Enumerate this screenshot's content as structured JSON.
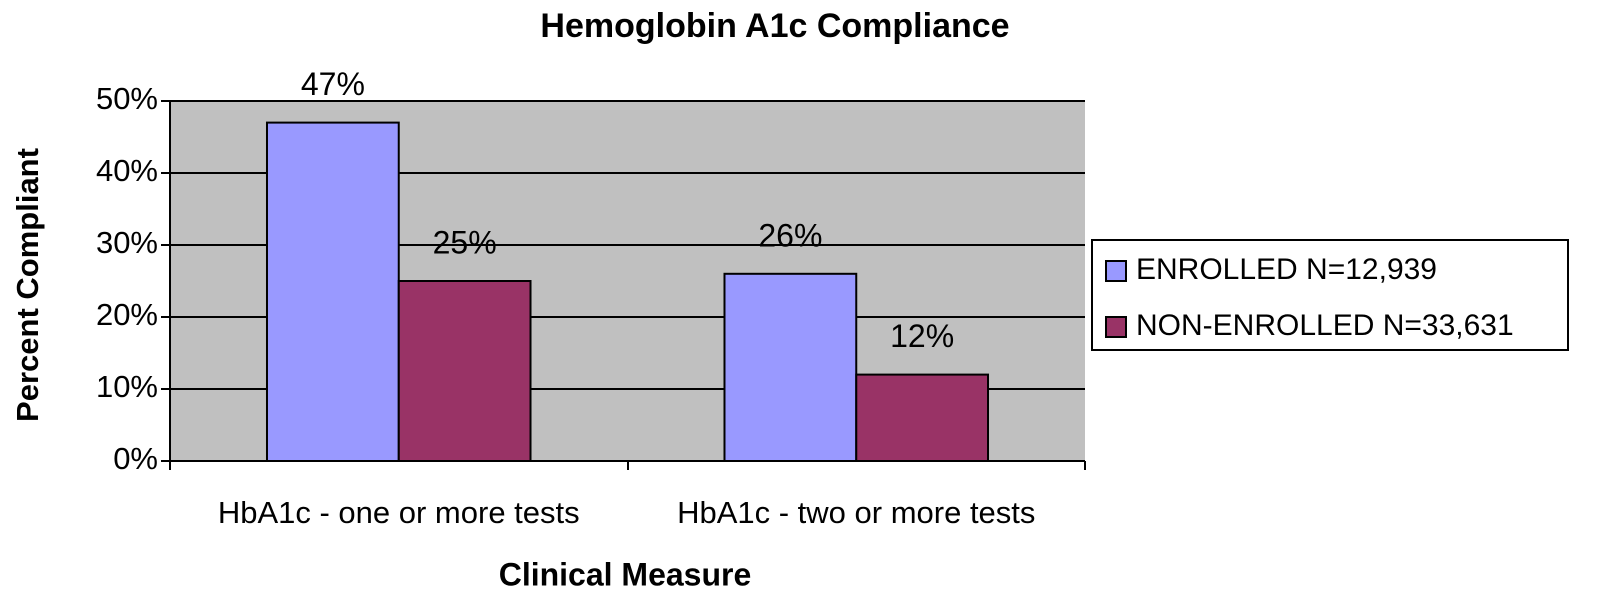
{
  "chart_data": {
    "type": "bar",
    "title": "Hemoglobin A1c Compliance",
    "x_label": "Clinical Measure",
    "y_label": "Percent Compliant",
    "categories": [
      "HbA1c - one or more tests",
      "HbA1c - two or more tests"
    ],
    "series": [
      {
        "name": "ENROLLED N=12,939",
        "color": "#9999ff",
        "values": [
          47,
          26
        ],
        "value_labels": [
          "47%",
          "26%"
        ]
      },
      {
        "name": "NON-ENROLLED N=33,631",
        "color": "#993366",
        "values": [
          25,
          12
        ],
        "value_labels": [
          "25%",
          "12%"
        ]
      }
    ],
    "ylim": [
      0,
      50
    ],
    "yticks": [
      {
        "value": 0,
        "label": "0%"
      },
      {
        "value": 10,
        "label": "10%"
      },
      {
        "value": 20,
        "label": "20%"
      },
      {
        "value": 30,
        "label": "30%"
      },
      {
        "value": 40,
        "label": "40%"
      },
      {
        "value": 50,
        "label": "50%"
      }
    ],
    "grid": true,
    "legend": "right",
    "plot_background": "#c0c0c0"
  }
}
